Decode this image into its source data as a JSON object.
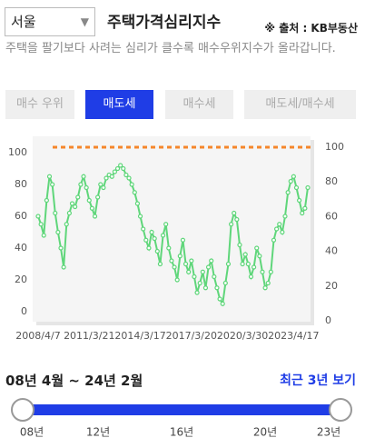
{
  "header": {
    "region": "서울",
    "title": "주택가격심리지수",
    "source": "※ 출처 : KB부동산",
    "description": "주택을 팔기보다 사려는 심리가 클수록 매수우위지수가 올라갑니다."
  },
  "tabs": [
    "매수 우위",
    "매도세",
    "매수세",
    "매도세/매수세"
  ],
  "chart_data": {
    "type": "line",
    "categories": [
      "2008/4/7",
      null,
      null,
      null,
      null,
      null,
      null,
      null,
      null,
      null,
      null,
      null,
      null,
      null,
      null,
      null,
      null,
      null,
      "2011/3/21",
      null,
      null,
      null,
      null,
      null,
      null,
      null,
      null,
      null,
      null,
      null,
      null,
      null,
      null,
      null,
      null,
      null,
      "2014/3/17",
      null,
      null,
      null,
      null,
      null,
      null,
      null,
      null,
      null,
      null,
      null,
      null,
      null,
      null,
      null,
      null,
      null,
      "2017/3/20",
      null,
      null,
      null,
      null,
      null,
      null,
      null,
      null,
      null,
      null,
      null,
      null,
      null,
      null,
      null,
      null,
      null,
      "2020/3/30",
      null,
      null,
      null,
      null,
      null,
      null,
      null,
      null,
      null,
      null,
      null,
      null,
      null,
      null,
      null,
      null,
      null,
      "2023/4/17",
      null,
      null,
      null,
      null,
      null
    ],
    "series": [
      {
        "color": "#5fd67a",
        "values": [
          60,
          55,
          48,
          70,
          85,
          80,
          62,
          50,
          40,
          28,
          55,
          62,
          68,
          66,
          72,
          80,
          85,
          78,
          70,
          65,
          60,
          72,
          80,
          78,
          84,
          86,
          85,
          88,
          90,
          92,
          90,
          86,
          84,
          80,
          75,
          68,
          60,
          52,
          45,
          40,
          50,
          46,
          38,
          30,
          48,
          55,
          40,
          32,
          28,
          20,
          35,
          45,
          30,
          25,
          32,
          22,
          12,
          18,
          25,
          15,
          28,
          32,
          22,
          15,
          8,
          5,
          18,
          30,
          55,
          62,
          58,
          42,
          30,
          36,
          30,
          22,
          28,
          40,
          35,
          25,
          15,
          18,
          25,
          45,
          52,
          55,
          50,
          60,
          75,
          82,
          85,
          78,
          70,
          62,
          65,
          78
        ]
      }
    ],
    "reference_line": {
      "value": 100,
      "axis": "y2",
      "color": "#f5862b"
    },
    "ylim": [
      0,
      100
    ],
    "yticks": [
      0,
      20,
      40,
      60,
      80,
      100
    ],
    "y2lim": [
      0,
      100
    ],
    "y2ticks": [
      0,
      20,
      40,
      60,
      80,
      100
    ]
  },
  "period": "08년 4월 ~ 24년 2월",
  "recent_button": "최근 3년 보기",
  "slider": {
    "labels": [
      "08년",
      "12년",
      "16년",
      "20년",
      "23년"
    ]
  }
}
